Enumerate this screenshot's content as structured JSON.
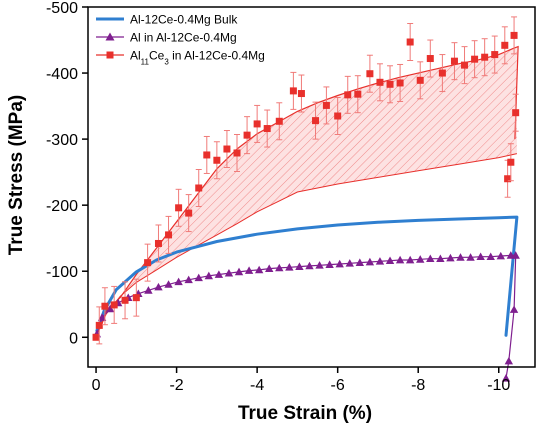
{
  "chart_data": {
    "type": "line",
    "xlabel": "True Strain (%)",
    "ylabel": "True Stress (MPa)",
    "xlim": [
      0.2,
      -10.9
    ],
    "ylim": [
      -500,
      45
    ],
    "x_ticks": [
      {
        "value": 0,
        "label": "0"
      },
      {
        "value": -2,
        "label": "-2"
      },
      {
        "value": -4,
        "label": "-4"
      },
      {
        "value": -6,
        "label": "-6"
      },
      {
        "value": -8,
        "label": "-8"
      },
      {
        "value": -10,
        "label": "-10"
      }
    ],
    "y_ticks": [
      {
        "value": -500,
        "label": "-500"
      },
      {
        "value": -400,
        "label": "-400"
      },
      {
        "value": -300,
        "label": "-300"
      },
      {
        "value": -200,
        "label": "-200"
      },
      {
        "value": -100,
        "label": "-100"
      },
      {
        "value": 0,
        "label": "0"
      }
    ],
    "grid": false,
    "legend_position": "top-left",
    "legend": [
      {
        "name": "Al-12Ce-0.4Mg Bulk",
        "name_parts": [
          [
            "Al-12Ce-0.4Mg Bulk",
            ""
          ]
        ],
        "color": "#2f7fd0",
        "marker": "none"
      },
      {
        "name": "Al in Al-12Ce-0.4Mg",
        "name_parts": [
          [
            "Al in Al-12Ce-0.4Mg",
            ""
          ]
        ],
        "color": "#7f1f8f",
        "marker": "triangle"
      },
      {
        "name": "Al11Ce3 in Al-12Ce-0.4Mg",
        "name_parts": [
          [
            "Al",
            ""
          ],
          [
            "11",
            "sub"
          ],
          [
            "Ce",
            ""
          ],
          [
            "3",
            "sub"
          ],
          [
            " in Al-12Ce-0.4Mg",
            ""
          ]
        ],
        "color": "#e8302c",
        "marker": "square"
      }
    ],
    "series": [
      {
        "name": "Al-12Ce-0.4Mg Bulk",
        "color": "#2f7fd0",
        "x": [
          -0.02,
          -0.2,
          -0.5,
          -1.0,
          -1.5,
          -2.0,
          -2.5,
          -3.0,
          -4.0,
          -5.0,
          -6.0,
          -7.0,
          -8.0,
          -9.0,
          -10.0,
          -10.45,
          -10.18
        ],
        "y": [
          -10,
          -40,
          -72,
          -99,
          -117,
          -129,
          -137,
          -145,
          -156,
          -164,
          -170,
          -174,
          -177,
          -179,
          -181,
          -182,
          -3
        ]
      },
      {
        "name": "Al in Al-12Ce-0.4Mg",
        "color": "#7f1f8f",
        "x": [
          -0.02,
          -0.15,
          -0.35,
          -0.55,
          -0.8,
          -1.05,
          -1.3,
          -1.55,
          -1.8,
          -2.05,
          -2.3,
          -2.55,
          -2.8,
          -3.05,
          -3.3,
          -3.55,
          -3.8,
          -4.05,
          -4.3,
          -4.55,
          -4.8,
          -5.05,
          -5.3,
          -5.55,
          -5.8,
          -6.05,
          -6.3,
          -6.55,
          -6.8,
          -7.05,
          -7.3,
          -7.55,
          -7.8,
          -8.05,
          -8.3,
          -8.55,
          -8.8,
          -9.05,
          -9.3,
          -9.55,
          -9.8,
          -10.05,
          -10.3,
          -10.42,
          -10.38,
          -10.25,
          -10.18
        ],
        "y": [
          -5,
          -30,
          -43,
          -52,
          -60,
          -66,
          -71,
          -76,
          -80,
          -84,
          -87,
          -90,
          -93,
          -95,
          -97,
          -99,
          -101,
          -102,
          -104,
          -105,
          -106,
          -107,
          -108,
          -109,
          -110,
          -111,
          -112,
          -113,
          -114,
          -115,
          -116,
          -117,
          -117,
          -118,
          -119,
          -119,
          -120,
          -121,
          -121,
          -122,
          -122,
          -123,
          -124,
          -124,
          -42,
          36,
          62
        ]
      },
      {
        "name": "Al11Ce3 in Al-12Ce-0.4Mg",
        "color": "#e8302c",
        "x": [
          0.0,
          -0.08,
          -0.22,
          -0.45,
          -0.72,
          -1.0,
          -1.28,
          -1.55,
          -1.8,
          -2.05,
          -2.3,
          -2.55,
          -2.75,
          -3.0,
          -3.25,
          -3.5,
          -3.75,
          -4.0,
          -4.25,
          -4.55,
          -4.9,
          -5.1,
          -5.45,
          -5.72,
          -6.0,
          -6.25,
          -6.5,
          -6.8,
          -7.05,
          -7.3,
          -7.55,
          -7.8,
          -8.05,
          -8.3,
          -8.6,
          -8.9,
          -9.15,
          -9.4,
          -9.65,
          -9.9,
          -10.15,
          -10.38,
          -10.22,
          -10.3,
          -10.42
        ],
        "y": [
          0,
          -18,
          -47,
          -49,
          -56,
          -60,
          -113,
          -142,
          -155,
          -196,
          -188,
          -226,
          -276,
          -268,
          -285,
          -279,
          -306,
          -323,
          -316,
          -327,
          -373,
          -369,
          -328,
          -351,
          -335,
          -367,
          -368,
          -399,
          -386,
          -383,
          -385,
          -447,
          -389,
          -422,
          -400,
          -418,
          -412,
          -421,
          -424,
          -428,
          -442,
          -457,
          -240,
          -265,
          -340
        ],
        "error": [
          0,
          28,
          28,
          28,
          28,
          28,
          28,
          28,
          28,
          28,
          28,
          28,
          28,
          28,
          28,
          28,
          28,
          28,
          28,
          28,
          28,
          28,
          28,
          28,
          28,
          28,
          28,
          28,
          28,
          28,
          28,
          28,
          28,
          28,
          28,
          28,
          28,
          28,
          28,
          28,
          28,
          28,
          28,
          28,
          28
        ]
      }
    ],
    "fit_line": {
      "series": "Al11Ce3 in Al-12Ce-0.4Mg",
      "color": "#e8302c",
      "x": [
        0.0,
        -0.25,
        -0.6,
        -1.0,
        -1.5,
        -2.0,
        -2.5,
        -3.0,
        -3.5,
        -4.0,
        -4.5,
        -5.0,
        -5.5,
        -6.0,
        -6.5,
        -7.0,
        -7.5,
        -8.0,
        -8.5,
        -9.0,
        -9.5,
        -10.0,
        -10.35,
        -10.48,
        -10.4
      ],
      "y": [
        0,
        -40,
        -60,
        -95,
        -135,
        -175,
        -215,
        -255,
        -285,
        -308,
        -325,
        -342,
        -355,
        -366,
        -376,
        -385,
        -393,
        -400,
        -407,
        -414,
        -420,
        -428,
        -437,
        -440,
        -300
      ]
    },
    "shaded_band": {
      "color": "#e8302c",
      "description": "hatched region between measured and lower bound",
      "upper_x": [
        0.0,
        -0.25,
        -0.6,
        -1.0,
        -1.5,
        -2.0,
        -2.5,
        -3.0,
        -3.5,
        -4.0,
        -4.5,
        -5.0,
        -5.5,
        -6.0,
        -6.5,
        -7.0,
        -7.5,
        -8.0,
        -8.5,
        -9.0,
        -9.5,
        -10.0,
        -10.45
      ],
      "upper_y": [
        0,
        -40,
        -60,
        -95,
        -135,
        -175,
        -215,
        -255,
        -285,
        -308,
        -325,
        -342,
        -355,
        -366,
        -376,
        -385,
        -393,
        -400,
        -407,
        -414,
        -420,
        -428,
        -440
      ],
      "lower_x": [
        -10.45,
        -10.0,
        -9.0,
        -8.0,
        -7.0,
        -6.0,
        -5.0,
        -4.5,
        -4.0,
        -3.5,
        -3.0,
        -2.5,
        -2.0,
        -1.5,
        -1.0,
        -0.6,
        -0.25,
        0.0
      ],
      "lower_y": [
        -278,
        -272,
        -262,
        -252,
        -242,
        -232,
        -220,
        -205,
        -190,
        -172,
        -155,
        -138,
        -121,
        -102,
        -83,
        -62,
        -35,
        0
      ]
    }
  }
}
